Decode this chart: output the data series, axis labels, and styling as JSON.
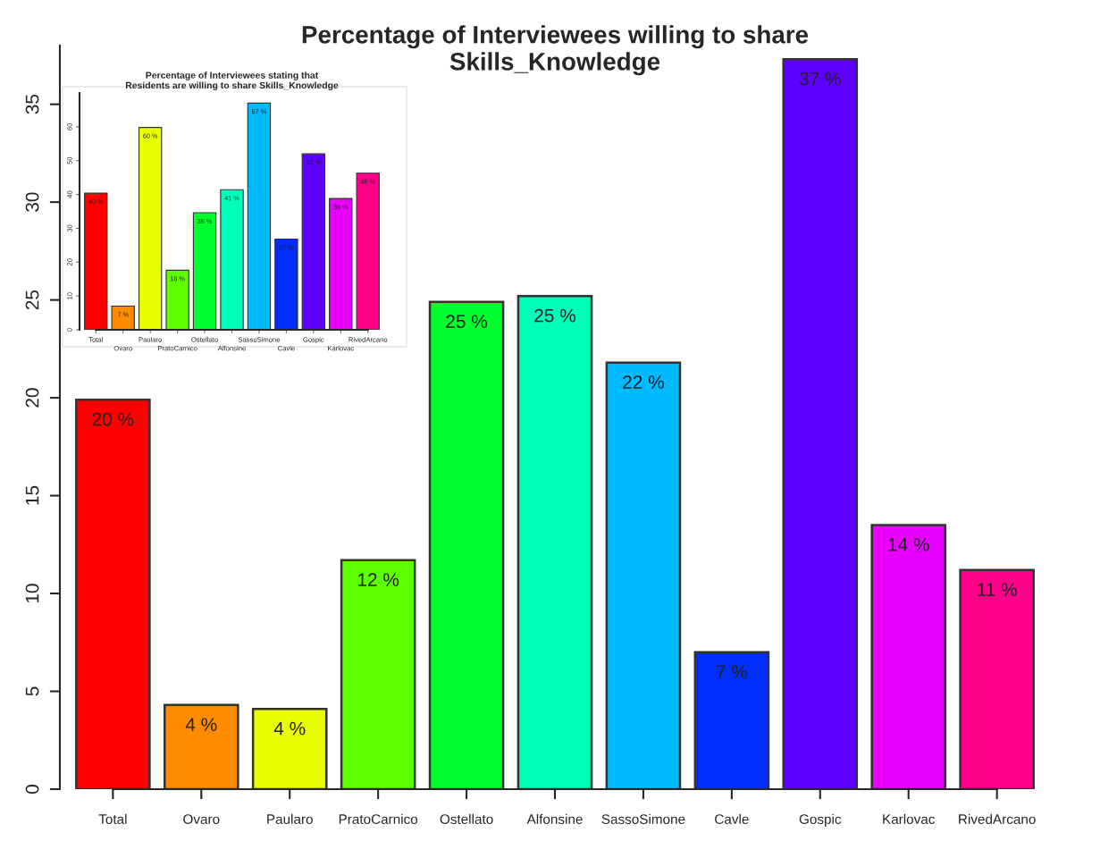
{
  "chart_data": [
    {
      "type": "bar",
      "title": "Percentage of Interviewees willing to share\nSkills_Knowledge",
      "categories": [
        "Total",
        "Ovaro",
        "Paularo",
        "PratoCarnico",
        "Ostellato",
        "Alfonsine",
        "SassoSimone",
        "Cavle",
        "Gospic",
        "Karlovac",
        "RivedArcano"
      ],
      "values": [
        19.9,
        4.3,
        4.1,
        11.7,
        24.9,
        25.2,
        21.8,
        7.0,
        37.3,
        13.5,
        11.2
      ],
      "value_labels": [
        "20 %",
        "4 %",
        "4 %",
        "12 %",
        "25 %",
        "25 %",
        "22 %",
        "7 %",
        "37 %",
        "14 %",
        "11 %"
      ],
      "colors": [
        "#ff0000",
        "#ff8b00",
        "#e8ff00",
        "#5dff00",
        "#00ff2e",
        "#00ffb9",
        "#00b9ff",
        "#002eff",
        "#5d00ff",
        "#e800ff",
        "#ff008b"
      ],
      "ylim": [
        0,
        38
      ],
      "yticks": [
        0,
        5,
        10,
        15,
        20,
        25,
        30,
        35
      ],
      "grid": false
    },
    {
      "type": "bar",
      "title": "Percentage of Interviewees stating that\nResidents are willing to share Skills_Knowledge",
      "categories": [
        "Total",
        "Ovaro",
        "Paularo",
        "PratoCarnico",
        "Ostellato",
        "Alfonsine",
        "SassoSimone",
        "Cavle",
        "Gospic",
        "Karlovac",
        "RivedArcano"
      ],
      "values": [
        40.4,
        7.0,
        59.8,
        17.6,
        34.6,
        41.4,
        67.0,
        26.8,
        52.0,
        38.8,
        46.3
      ],
      "value_labels": [
        "40 %",
        "7 %",
        "60 %",
        "18 %",
        "35 %",
        "41 %",
        "67 %",
        "27 %",
        "52 %",
        "39 %",
        "46 %"
      ],
      "colors": [
        "#ff0000",
        "#ff8b00",
        "#e8ff00",
        "#5dff00",
        "#00ff2e",
        "#00ffb9",
        "#00b9ff",
        "#002eff",
        "#5d00ff",
        "#e800ff",
        "#ff008b"
      ],
      "ylim": [
        0,
        70
      ],
      "yticks": [
        0,
        10,
        20,
        30,
        40,
        50,
        60
      ],
      "grid": false
    }
  ]
}
